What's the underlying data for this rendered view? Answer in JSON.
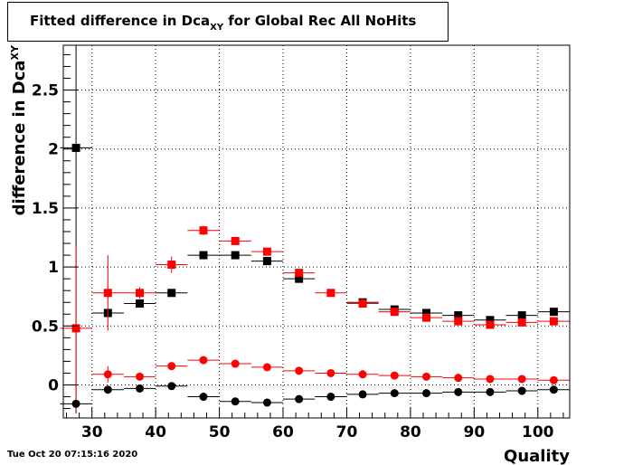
{
  "title": {
    "prefix": "Fitted difference in Dca",
    "subscript": "XY",
    "suffix": " for Global Rec All NoHits"
  },
  "date_stamp": "Tue Oct 20 07:15:16 2020",
  "chart_data": {
    "type": "scatter",
    "title": "Fitted difference in DcaXY for Global Rec All NoHits",
    "xlabel": "Quality",
    "ylabel": {
      "text": "difference in Dca",
      "subscript": "XY"
    },
    "xlim": [
      25.5,
      105
    ],
    "ylim": [
      -0.28,
      2.88
    ],
    "x_ticks": [
      30,
      40,
      50,
      60,
      70,
      80,
      90,
      100
    ],
    "x_tick_labels": [
      "30",
      "40",
      "50",
      "60",
      "70",
      "80",
      "90",
      "100"
    ],
    "y_ticks": [
      0,
      0.5,
      1,
      1.5,
      2,
      2.5
    ],
    "y_tick_labels": [
      "0",
      "0.5",
      "1",
      "1.5",
      "2",
      "2.5"
    ],
    "grid": true,
    "legend": "none",
    "x": [
      27.5,
      32.5,
      37.5,
      42.5,
      47.5,
      52.5,
      57.5,
      62.5,
      67.5,
      72.5,
      77.5,
      82.5,
      87.5,
      92.5,
      97.5,
      102.5
    ],
    "x_half_width": 2.5,
    "series": [
      {
        "marker": "square",
        "color": "#000000",
        "values": [
          2.01,
          0.61,
          0.69,
          0.78,
          1.1,
          1.1,
          1.05,
          0.9,
          null,
          0.7,
          0.64,
          0.61,
          0.59,
          0.55,
          0.59,
          0.62
        ],
        "errors": [
          2.25,
          0.03,
          0.03,
          0.03,
          0.02,
          0.02,
          0.02,
          0.02,
          null,
          0.02,
          0.02,
          0.02,
          0.02,
          0.02,
          0.02,
          0.02
        ]
      },
      {
        "marker": "square",
        "color": "#ff0000",
        "values": [
          0.48,
          0.78,
          0.78,
          1.02,
          1.31,
          1.22,
          1.13,
          0.95,
          0.78,
          0.69,
          0.62,
          0.57,
          0.54,
          0.51,
          0.53,
          0.54
        ],
        "errors": [
          0.7,
          0.32,
          0.05,
          0.07,
          0.04,
          0.02,
          0.02,
          0.03,
          0.02,
          0.02,
          0.02,
          0.02,
          0.02,
          0.02,
          0.02,
          0.02
        ]
      },
      {
        "marker": "circle",
        "color": "#ff0000",
        "values": [
          null,
          0.09,
          0.07,
          0.16,
          0.21,
          0.18,
          0.15,
          0.12,
          0.1,
          0.09,
          0.08,
          0.07,
          0.06,
          0.05,
          0.05,
          0.04
        ],
        "errors": [
          null,
          0.07,
          0.02,
          0.02,
          0.02,
          0.01,
          0.01,
          0.01,
          0.01,
          0.01,
          0.01,
          0.01,
          0.01,
          0.01,
          0.01,
          0.01
        ]
      },
      {
        "marker": "circle",
        "color": "#000000",
        "values": [
          -0.16,
          -0.04,
          -0.03,
          -0.01,
          -0.1,
          -0.14,
          -0.15,
          -0.12,
          -0.1,
          -0.08,
          -0.07,
          -0.07,
          -0.06,
          -0.06,
          -0.05,
          -0.04
        ],
        "errors": [
          0.0,
          0.01,
          0.01,
          0.01,
          0.01,
          0.01,
          0.01,
          0.01,
          0.01,
          0.01,
          0.01,
          0.01,
          0.01,
          0.01,
          0.01,
          0.01
        ]
      }
    ]
  }
}
